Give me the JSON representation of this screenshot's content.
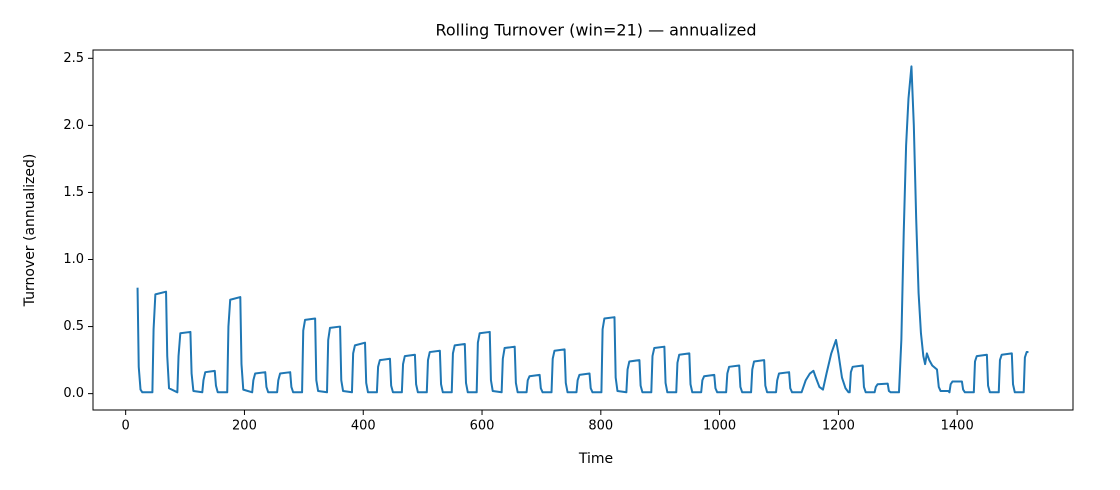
{
  "chart_data": {
    "type": "line",
    "title": "Rolling Turnover (win=21) — annualized",
    "x_label": "Time",
    "y_label": "Turnover (annualized)",
    "xlim": [
      -55,
      1595
    ],
    "ylim": [
      -0.122,
      2.562
    ],
    "xticks": [
      0,
      200,
      400,
      600,
      800,
      1000,
      1200,
      1400
    ],
    "yticks": [
      {
        "value": 0,
        "label": "0.0"
      },
      0.5,
      {
        "value": 1,
        "label": "1.0"
      },
      1.5,
      {
        "value": 2,
        "label": "2.0"
      },
      2.5
    ],
    "grid": false,
    "series": [
      {
        "color": "#1f77b4",
        "x": [
          20,
          22,
          25,
          28,
          45,
          47,
          50,
          68,
          70,
          73,
          87,
          89,
          92,
          109,
          111,
          114,
          129,
          131,
          134,
          150,
          152,
          155,
          171,
          173,
          176,
          193,
          195,
          198,
          213,
          215,
          218,
          235,
          237,
          240,
          255,
          257,
          260,
          277,
          279,
          282,
          297,
          299,
          302,
          319,
          321,
          324,
          339,
          341,
          344,
          361,
          363,
          366,
          381,
          383,
          386,
          403,
          405,
          408,
          423,
          425,
          428,
          445,
          447,
          450,
          465,
          467,
          470,
          487,
          489,
          492,
          507,
          509,
          512,
          529,
          531,
          534,
          549,
          551,
          554,
          571,
          573,
          576,
          591,
          593,
          596,
          613,
          615,
          618,
          633,
          635,
          638,
          655,
          657,
          660,
          675,
          677,
          680,
          697,
          699,
          702,
          717,
          719,
          722,
          739,
          741,
          744,
          759,
          761,
          764,
          781,
          783,
          786,
          801,
          803,
          806,
          823,
          825,
          828,
          843,
          845,
          848,
          865,
          867,
          870,
          885,
          887,
          890,
          907,
          909,
          912,
          927,
          929,
          932,
          949,
          951,
          954,
          969,
          971,
          974,
          991,
          993,
          996,
          1011,
          1013,
          1016,
          1033,
          1035,
          1038,
          1053,
          1055,
          1058,
          1075,
          1077,
          1080,
          1095,
          1097,
          1100,
          1117,
          1119,
          1122,
          1138,
          1145,
          1152,
          1158,
          1162,
          1168,
          1174,
          1180,
          1188,
          1196,
          1200,
          1206,
          1212,
          1217,
          1219,
          1221,
          1224,
          1241,
          1243,
          1246,
          1261,
          1263,
          1266,
          1283,
          1285,
          1288,
          1302,
          1306,
          1310,
          1314,
          1318,
          1323,
          1327,
          1331,
          1335,
          1339,
          1343,
          1346,
          1349,
          1353,
          1358,
          1366,
          1369,
          1372,
          1385,
          1387,
          1389,
          1392,
          1408,
          1410,
          1413,
          1428,
          1430,
          1433,
          1450,
          1452,
          1455,
          1470,
          1472,
          1475,
          1492,
          1494,
          1497,
          1512,
          1514,
          1517,
          1520
        ],
        "values": [
          0.79,
          0.2,
          0.03,
          0.01,
          0.01,
          0.48,
          0.74,
          0.76,
          0.28,
          0.04,
          0.01,
          0.28,
          0.45,
          0.46,
          0.15,
          0.02,
          0.01,
          0.1,
          0.16,
          0.17,
          0.06,
          0.01,
          0.01,
          0.5,
          0.7,
          0.72,
          0.22,
          0.03,
          0.01,
          0.1,
          0.15,
          0.16,
          0.05,
          0.01,
          0.01,
          0.1,
          0.15,
          0.16,
          0.05,
          0.01,
          0.01,
          0.47,
          0.55,
          0.56,
          0.1,
          0.02,
          0.01,
          0.4,
          0.49,
          0.5,
          0.1,
          0.02,
          0.01,
          0.3,
          0.36,
          0.38,
          0.08,
          0.01,
          0.01,
          0.2,
          0.25,
          0.26,
          0.06,
          0.01,
          0.01,
          0.22,
          0.28,
          0.29,
          0.07,
          0.01,
          0.01,
          0.25,
          0.31,
          0.32,
          0.07,
          0.01,
          0.01,
          0.3,
          0.36,
          0.37,
          0.08,
          0.01,
          0.01,
          0.38,
          0.45,
          0.46,
          0.1,
          0.02,
          0.01,
          0.26,
          0.34,
          0.35,
          0.08,
          0.01,
          0.01,
          0.1,
          0.13,
          0.14,
          0.04,
          0.01,
          0.01,
          0.26,
          0.32,
          0.33,
          0.08,
          0.01,
          0.01,
          0.1,
          0.14,
          0.15,
          0.04,
          0.01,
          0.01,
          0.48,
          0.56,
          0.57,
          0.12,
          0.02,
          0.01,
          0.18,
          0.24,
          0.25,
          0.06,
          0.01,
          0.01,
          0.28,
          0.34,
          0.35,
          0.08,
          0.01,
          0.01,
          0.23,
          0.29,
          0.3,
          0.07,
          0.01,
          0.01,
          0.1,
          0.13,
          0.14,
          0.04,
          0.01,
          0.01,
          0.15,
          0.2,
          0.21,
          0.05,
          0.01,
          0.01,
          0.18,
          0.24,
          0.25,
          0.06,
          0.01,
          0.01,
          0.1,
          0.15,
          0.16,
          0.04,
          0.01,
          0.01,
          0.1,
          0.15,
          0.17,
          0.12,
          0.05,
          0.03,
          0.15,
          0.3,
          0.4,
          0.3,
          0.12,
          0.04,
          0.01,
          0.01,
          0.16,
          0.2,
          0.21,
          0.05,
          0.01,
          0.01,
          0.05,
          0.07,
          0.075,
          0.02,
          0.01,
          0.01,
          0.4,
          1.2,
          1.85,
          2.2,
          2.44,
          2.0,
          1.3,
          0.75,
          0.45,
          0.28,
          0.22,
          0.3,
          0.25,
          0.21,
          0.18,
          0.05,
          0.02,
          0.02,
          0.01,
          0.07,
          0.09,
          0.09,
          0.03,
          0.01,
          0.01,
          0.24,
          0.28,
          0.29,
          0.06,
          0.01,
          0.01,
          0.25,
          0.29,
          0.3,
          0.07,
          0.01,
          0.01,
          0.27,
          0.31,
          0.31
        ]
      }
    ]
  }
}
